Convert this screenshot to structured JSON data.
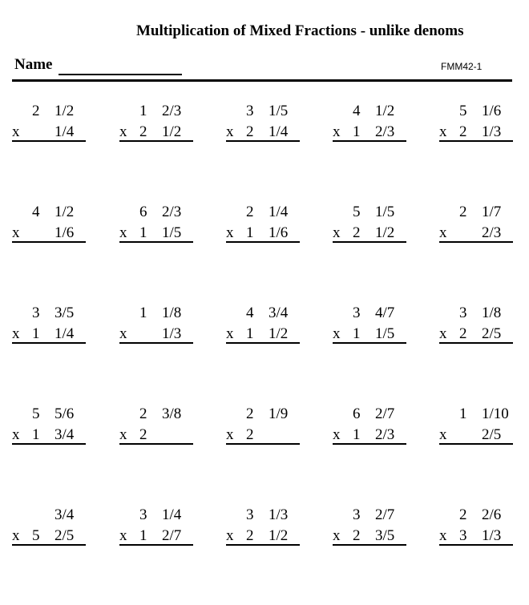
{
  "header": {
    "title": "Multiplication of Mixed Fractions - unlike denoms",
    "name_label": "Name",
    "code": "FMM42-1"
  },
  "problems": [
    [
      {
        "top_whole": "2",
        "top_frac": "1/2",
        "op": "x",
        "bottom_whole": "",
        "bottom_frac": "1/4"
      },
      {
        "top_whole": "1",
        "top_frac": "2/3",
        "op": "x",
        "bottom_whole": "2",
        "bottom_frac": "1/2"
      },
      {
        "top_whole": "3",
        "top_frac": "1/5",
        "op": "x",
        "bottom_whole": "2",
        "bottom_frac": "1/4"
      },
      {
        "top_whole": "4",
        "top_frac": "1/2",
        "op": "x",
        "bottom_whole": "1",
        "bottom_frac": "2/3"
      },
      {
        "top_whole": "5",
        "top_frac": "1/6",
        "op": "x",
        "bottom_whole": "2",
        "bottom_frac": "1/3"
      }
    ],
    [
      {
        "top_whole": "4",
        "top_frac": "1/2",
        "op": "x",
        "bottom_whole": "",
        "bottom_frac": "1/6"
      },
      {
        "top_whole": "6",
        "top_frac": "2/3",
        "op": "x",
        "bottom_whole": "1",
        "bottom_frac": "1/5"
      },
      {
        "top_whole": "2",
        "top_frac": "1/4",
        "op": "x",
        "bottom_whole": "1",
        "bottom_frac": "1/6"
      },
      {
        "top_whole": "5",
        "top_frac": "1/5",
        "op": "x",
        "bottom_whole": "2",
        "bottom_frac": "1/2"
      },
      {
        "top_whole": "2",
        "top_frac": "1/7",
        "op": "x",
        "bottom_whole": "",
        "bottom_frac": "2/3"
      }
    ],
    [
      {
        "top_whole": "3",
        "top_frac": "3/5",
        "op": "x",
        "bottom_whole": "1",
        "bottom_frac": "1/4"
      },
      {
        "top_whole": "1",
        "top_frac": "1/8",
        "op": "x",
        "bottom_whole": "",
        "bottom_frac": "1/3"
      },
      {
        "top_whole": "4",
        "top_frac": "3/4",
        "op": "x",
        "bottom_whole": "1",
        "bottom_frac": "1/2"
      },
      {
        "top_whole": "3",
        "top_frac": "4/7",
        "op": "x",
        "bottom_whole": "1",
        "bottom_frac": "1/5"
      },
      {
        "top_whole": "3",
        "top_frac": "1/8",
        "op": "x",
        "bottom_whole": "2",
        "bottom_frac": "2/5"
      }
    ],
    [
      {
        "top_whole": "5",
        "top_frac": "5/6",
        "op": "x",
        "bottom_whole": "1",
        "bottom_frac": "3/4"
      },
      {
        "top_whole": "2",
        "top_frac": "3/8",
        "op": "x",
        "bottom_whole": "2",
        "bottom_frac": ""
      },
      {
        "top_whole": "2",
        "top_frac": "1/9",
        "op": "x",
        "bottom_whole": "2",
        "bottom_frac": ""
      },
      {
        "top_whole": "6",
        "top_frac": "2/7",
        "op": "x",
        "bottom_whole": "1",
        "bottom_frac": "2/3"
      },
      {
        "top_whole": "1",
        "top_frac": "1/10",
        "op": "x",
        "bottom_whole": "",
        "bottom_frac": "2/5"
      }
    ],
    [
      {
        "top_whole": "",
        "top_frac": "3/4",
        "op": "x",
        "bottom_whole": "5",
        "bottom_frac": "2/5"
      },
      {
        "top_whole": "3",
        "top_frac": "1/4",
        "op": "x",
        "bottom_whole": "1",
        "bottom_frac": "2/7"
      },
      {
        "top_whole": "3",
        "top_frac": "1/3",
        "op": "x",
        "bottom_whole": "2",
        "bottom_frac": "1/2"
      },
      {
        "top_whole": "3",
        "top_frac": "2/7",
        "op": "x",
        "bottom_whole": "2",
        "bottom_frac": "3/5"
      },
      {
        "top_whole": "2",
        "top_frac": "2/6",
        "op": "x",
        "bottom_whole": "3",
        "bottom_frac": "1/3"
      }
    ]
  ]
}
